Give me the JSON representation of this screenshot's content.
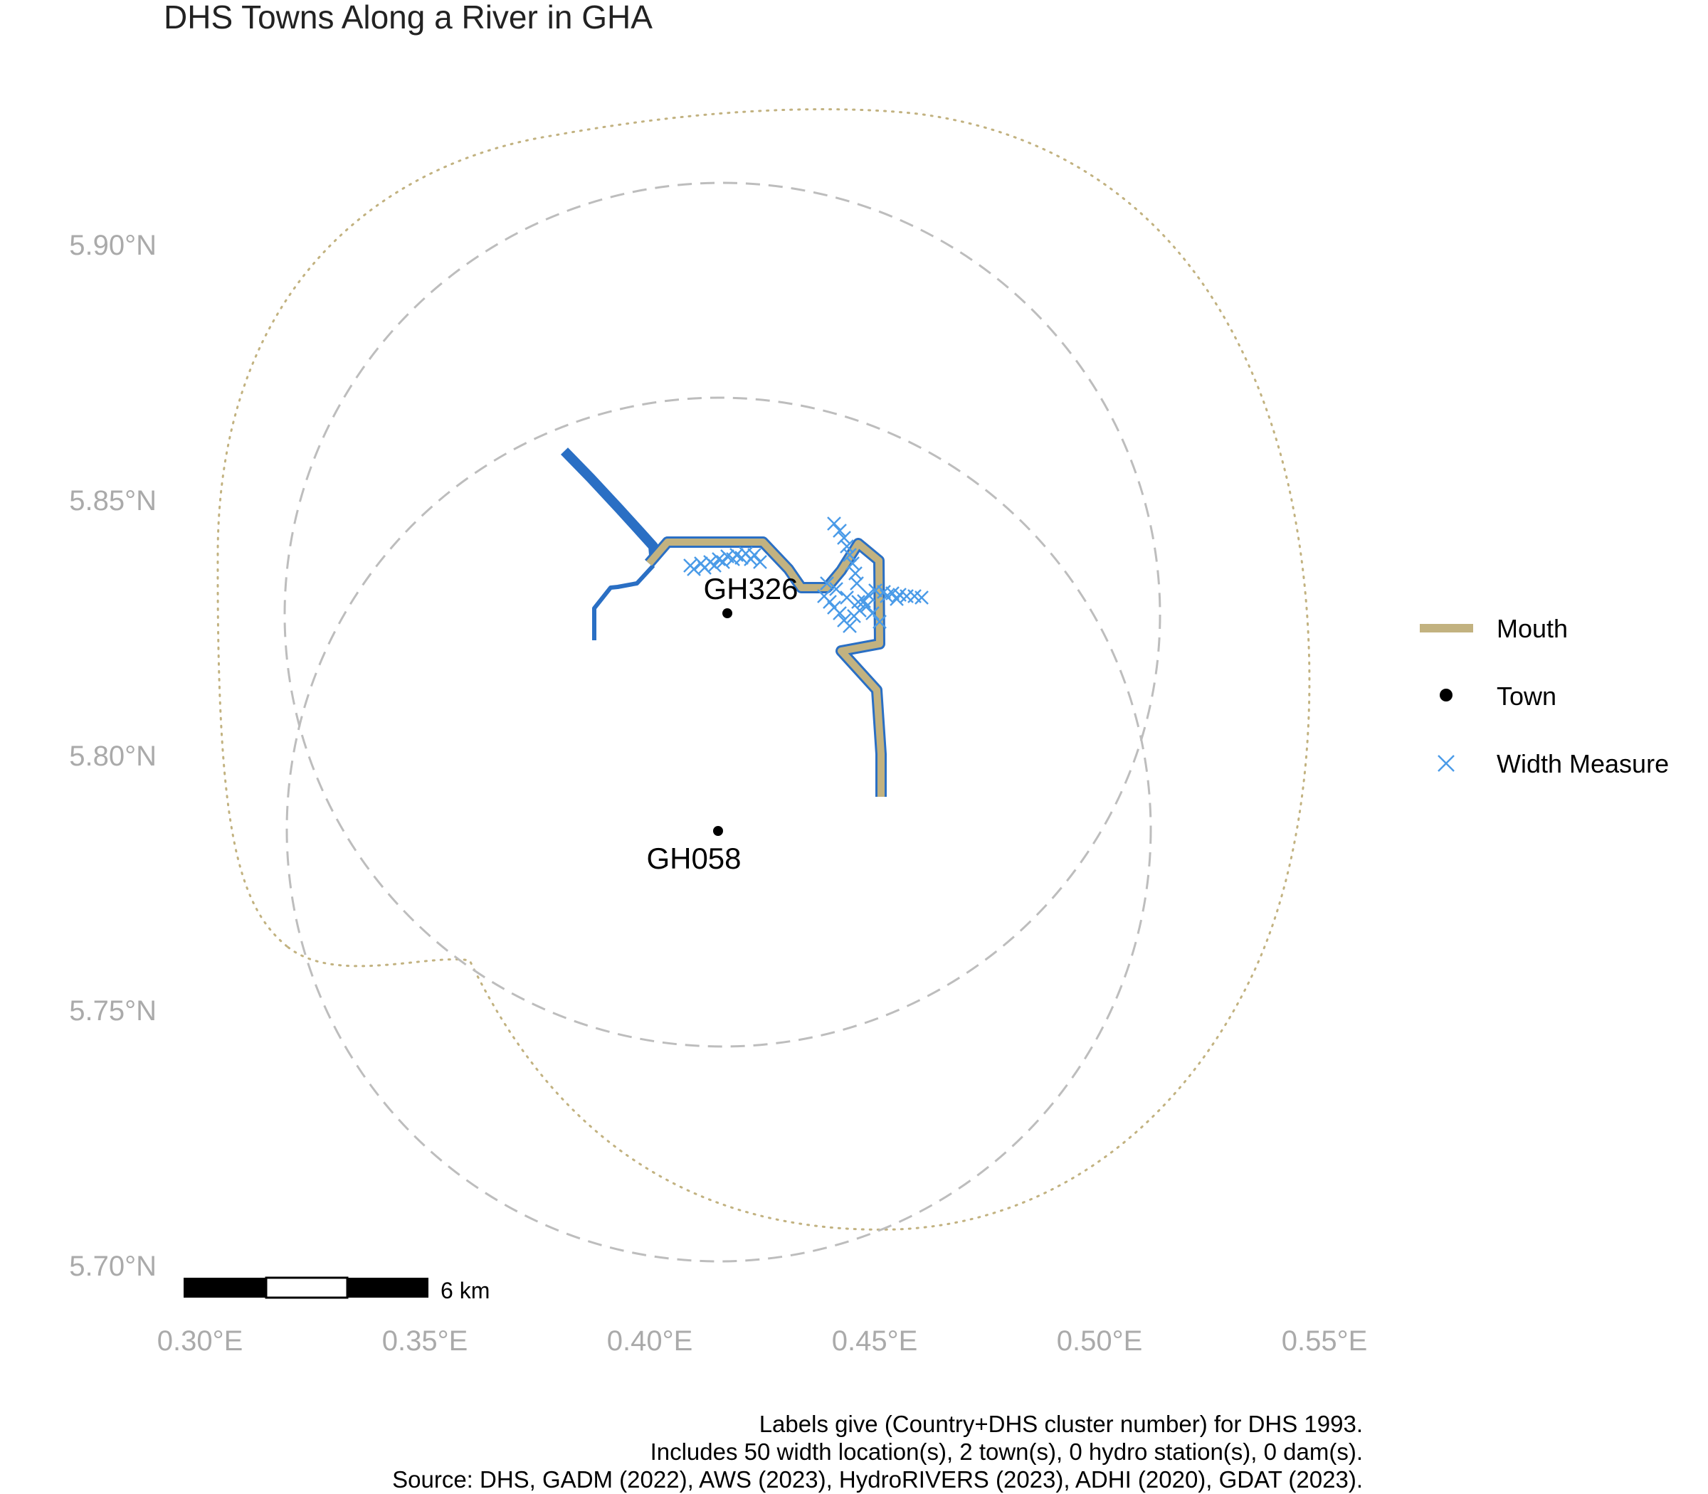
{
  "title": "DHS Towns Along a River in GHA",
  "axes": {
    "x_ticks": [
      "0.30°E",
      "0.35°E",
      "0.40°E",
      "0.45°E",
      "0.50°E",
      "0.55°E"
    ],
    "y_ticks": [
      "5.90°N",
      "5.85°N",
      "5.80°N",
      "5.75°N",
      "5.70°N"
    ]
  },
  "colors": {
    "river": "#2a6fc4",
    "mouth": "#c2b280",
    "town": "#000000",
    "width_measure": "#4a9be8",
    "buffer_circle": "#bdbdbd",
    "outer_boundary": "#c2b280",
    "axis_text": "#aaaaaa"
  },
  "towns": [
    {
      "id": "GH326",
      "label": "GH326",
      "lon": 0.4165,
      "lat": 5.8275
    },
    {
      "id": "GH058",
      "label": "GH058",
      "lon": 0.4145,
      "lat": 5.7845
    }
  ],
  "legend": {
    "items": [
      {
        "key": "mouth",
        "label": "Mouth",
        "symbol": "thick-line"
      },
      {
        "key": "town",
        "label": "Town",
        "symbol": "dot"
      },
      {
        "key": "width",
        "label": "Width Measure",
        "symbol": "cross"
      }
    ]
  },
  "scale_bar": {
    "label": "6 km"
  },
  "caption": {
    "line1": "Labels give (Country+DHS cluster number) for DHS 1993.",
    "line2": "Includes 50 width location(s), 2 town(s), 0 hydro station(s), 0 dam(s).",
    "line3": "Source: DHS, GADM (2022), AWS (2023), HydroRIVERS (2023), ADHI (2020), GDAT (2023)."
  },
  "width_measure_count": 50
}
